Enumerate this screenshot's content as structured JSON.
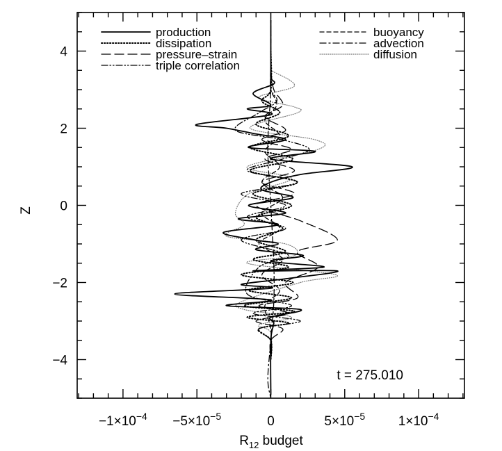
{
  "chart_data": {
    "type": "line",
    "orientation": "vertical-profile",
    "xlabel": {
      "base": "R",
      "subscript": "12",
      "suffix": " budget"
    },
    "ylabel": "Z",
    "xlim": [
      -0.000131,
      0.000131
    ],
    "ylim": [
      -5,
      5
    ],
    "x_ticks": [
      {
        "value": -0.0001,
        "mantissa": "−1×10",
        "exp": "−4"
      },
      {
        "value": -5e-05,
        "mantissa": "−5×10",
        "exp": "−5"
      },
      {
        "value": 0,
        "mantissa": "0",
        "exp": ""
      },
      {
        "value": 5e-05,
        "mantissa": "5×10",
        "exp": "−5"
      },
      {
        "value": 0.0001,
        "mantissa": "1×10",
        "exp": "−4"
      }
    ],
    "y_ticks": [
      -4,
      -2,
      0,
      2,
      4
    ],
    "annotation": "t = 275.010",
    "legend_left": [
      "production",
      "dissipation",
      "pressure–strain",
      "triple correlation"
    ],
    "legend_right": [
      "buoyancy",
      "advection",
      "diffusion"
    ],
    "series": [
      {
        "name": "production",
        "style": "solid",
        "color": "#000000",
        "x": [
          0,
          0,
          0,
          2e-06,
          -1.2e-05,
          0,
          -1.6e-05,
          0,
          -5e-05,
          -3e-05,
          -1e-05,
          1e-05,
          -1.5e-05,
          3e-05,
          0,
          5.5e-05,
          2e-05,
          0,
          -6e-06,
          1.5e-05,
          -1.5e-05,
          1e-05,
          -2.2e-05,
          5e-06,
          -3.2e-05,
          -1e-05,
          5e-06,
          -1e-05,
          2.2e-05,
          0,
          3.6e-05,
          -1.2e-05,
          4.5e-05,
          1.1e-05,
          -2e-05,
          0,
          -6.5e-05,
          0,
          -3e-05,
          2e-05,
          0,
          2e-06,
          0,
          0
        ],
        "y": [
          4.8,
          3.6,
          3.3,
          3.15,
          2.9,
          2.6,
          2.5,
          2.35,
          2.1,
          2.0,
          1.85,
          1.7,
          1.5,
          1.4,
          1.2,
          1.0,
          0.8,
          0.6,
          0.4,
          0.2,
          0.0,
          -0.2,
          -0.35,
          -0.5,
          -0.7,
          -0.9,
          -1.0,
          -1.15,
          -1.3,
          -1.45,
          -1.6,
          -1.7,
          -1.7,
          -1.9,
          -2.05,
          -2.15,
          -2.3,
          -2.45,
          -2.6,
          -2.7,
          -2.9,
          -3.05,
          -3.5,
          -4.9
        ]
      },
      {
        "name": "dissipation",
        "style": "dotted",
        "color": "#000000",
        "x": [
          0,
          0,
          -6e-06,
          6e-06,
          -1e-05,
          1.2e-05,
          -1.4e-05,
          1.5e-05,
          -1.4e-05,
          1.8e-05,
          -1.2e-05,
          1.4e-05,
          -1e-05,
          8e-06,
          -1e-05,
          1e-05,
          -1.2e-05,
          1.2e-05,
          -2e-05,
          1.5e-05,
          -1.5e-05,
          1.4e-05,
          -1.8e-05,
          1.6e-05,
          -1.6e-05,
          1.2e-05,
          -8e-06,
          0,
          0
        ],
        "y": [
          4.0,
          3.0,
          2.7,
          2.4,
          2.1,
          1.8,
          1.5,
          1.2,
          0.9,
          0.6,
          0.3,
          0.0,
          -0.3,
          -0.6,
          -0.9,
          -1.2,
          -1.4,
          -1.6,
          -1.8,
          -2.0,
          -2.2,
          -2.4,
          -2.6,
          -2.75,
          -2.9,
          -3.05,
          -3.2,
          -3.5,
          -4.0
        ]
      },
      {
        "name": "pressure–strain",
        "style": "longdash",
        "color": "#000000",
        "x": [
          0,
          2e-06,
          8e-06,
          -4e-06,
          1e-05,
          -6e-06,
          1.4e-05,
          -4e-06,
          1.6e-05,
          -6e-06,
          1.6e-05,
          -1e-05,
          2e-05,
          4.5e-05,
          1.8e-05,
          3.2e-05,
          1e-05,
          1.8e-05,
          -8e-06,
          1.2e-05,
          -1e-05,
          8e-06,
          0,
          0
        ],
        "y": [
          3.5,
          3.0,
          2.6,
          2.3,
          1.95,
          1.7,
          1.45,
          1.2,
          0.9,
          0.6,
          0.3,
          0.0,
          -0.4,
          -0.9,
          -1.2,
          -1.6,
          -2.0,
          -2.4,
          -2.6,
          -2.8,
          -3.0,
          -3.2,
          -3.5,
          -4.0
        ]
      },
      {
        "name": "triple correlation",
        "style": "dashdotdot",
        "color": "#000000",
        "x": [
          0,
          0,
          4e-06,
          -8e-06,
          -2.4e-05,
          8e-06,
          2.6e-05,
          8e-06,
          -1.6e-05,
          1.8e-05,
          -2e-05,
          1e-05,
          -1.6e-05,
          1e-05,
          -2e-05,
          1.2e-05,
          -8e-06,
          -1.6e-05,
          1.4e-05,
          -1.2e-05,
          2e-05,
          -8e-06,
          0,
          0
        ],
        "y": [
          3.5,
          3.0,
          2.7,
          2.4,
          1.95,
          1.7,
          1.45,
          1.2,
          0.9,
          0.6,
          0.3,
          0.0,
          -0.3,
          -0.6,
          -0.9,
          -1.3,
          -1.6,
          -2.3,
          -2.6,
          -2.8,
          -3.0,
          -3.2,
          -3.5,
          -4.0
        ]
      },
      {
        "name": "buoyancy",
        "style": "shortdash",
        "color": "#000000",
        "x": [
          0,
          0,
          0,
          4e-06,
          -4e-06,
          6e-06,
          -4e-06,
          6e-06,
          -6e-06,
          8e-06,
          -6e-06,
          6e-06,
          -8e-06,
          8e-06,
          -6e-06,
          6e-06,
          -4e-06,
          0,
          0
        ],
        "y": [
          4.5,
          3.5,
          3.0,
          2.6,
          2.2,
          1.8,
          1.4,
          1.0,
          0.6,
          0.2,
          -0.2,
          -0.6,
          -1.0,
          -1.4,
          -1.8,
          -2.2,
          -2.6,
          -3.2,
          -4.0
        ]
      },
      {
        "name": "advection",
        "style": "dashdot",
        "color": "#000000",
        "x": [
          0,
          0,
          0,
          -2e-06,
          0,
          2e-06,
          2e-06,
          0,
          -2e-06,
          0
        ],
        "y": [
          5,
          4,
          3,
          1.5,
          0,
          -1.5,
          -2.5,
          -3.5,
          -4.5,
          -5
        ]
      },
      {
        "name": "diffusion",
        "style": "dotted-thin",
        "color": "#777777",
        "x": [
          0,
          1.6e-05,
          -8e-06,
          1.6e-05,
          1.8e-05,
          -1.4e-05,
          3e-05,
          3.2e-05,
          -1.6e-05,
          1.4e-05,
          -1.5e-05,
          -2.4e-05,
          -1.8e-05,
          -3e-05,
          1e-05,
          1.6e-05,
          -1.6e-05,
          4.4e-05,
          2e-05,
          -2e-05,
          -1.8e-05,
          1.4e-05,
          -8e-06,
          0,
          0
        ],
        "y": [
          3.5,
          3.1,
          2.8,
          2.55,
          2.4,
          2.0,
          1.7,
          1.45,
          1.0,
          0.7,
          0.3,
          -0.2,
          -0.5,
          -0.8,
          -1.0,
          -1.3,
          -1.5,
          -1.8,
          -2.0,
          -2.5,
          -2.7,
          -2.9,
          -3.1,
          -3.3,
          -4.0
        ]
      }
    ]
  }
}
